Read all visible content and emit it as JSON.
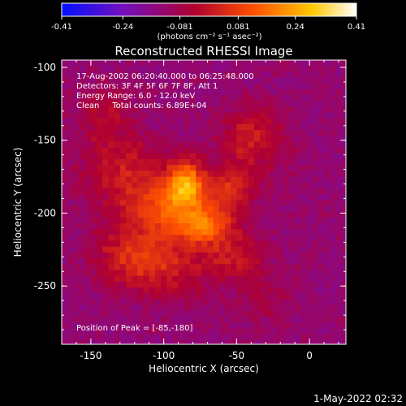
{
  "chart_data": {
    "type": "heatmap",
    "title": "Reconstructed RHESSI Image",
    "xlabel": "Heliocentric X (arcsec)",
    "ylabel": "Heliocentric Y (arcsec)",
    "xlim": [
      -170,
      25
    ],
    "ylim": [
      -290,
      -95
    ],
    "x_ticks": [
      "-150",
      "-100",
      "-50",
      "0"
    ],
    "x_tick_values": [
      -150,
      -100,
      -50,
      0
    ],
    "y_ticks": [
      "-100",
      "-150",
      "-200",
      "-250"
    ],
    "y_tick_values": [
      -100,
      -150,
      -200,
      -250
    ],
    "colorbar": {
      "min": -0.41,
      "max": 0.41,
      "tick_labels": [
        "-0.41",
        "-0.24",
        "-0.081",
        "0.081",
        "0.24",
        "0.41"
      ],
      "tick_values": [
        -0.41,
        -0.24,
        -0.081,
        0.081,
        0.24,
        0.41
      ],
      "units_label": "(photons cm⁻² s⁻¹ asec⁻²)",
      "colormap": [
        "#0010ff",
        "#7010c0",
        "#b00030",
        "#ff5000",
        "#ffc800",
        "#ffffff"
      ]
    },
    "annotations": [
      "17-Aug-2002 06:20:40.000 to 06:25:48.000",
      "Detectors: 3F 4F 5F 6F 7F 8F, Att 1",
      "Energy Range: 6.0 - 12.0 keV",
      "Clean     Total counts: 6.89E+04"
    ],
    "peak_label": "Position of Peak = [-85,-180]",
    "peak": [
      -85,
      -180
    ],
    "grid": false,
    "pixel_size_arcsec": 4,
    "sources": [
      {
        "x": -85,
        "y": -180,
        "sx": 9,
        "sy": 11,
        "amp": 0.33
      },
      {
        "x": -73,
        "y": -208,
        "sx": 14,
        "sy": 10,
        "amp": 0.26
      },
      {
        "x": -102,
        "y": -196,
        "sx": 17,
        "sy": 14,
        "amp": 0.2
      },
      {
        "x": -55,
        "y": -185,
        "sx": 13,
        "sy": 11,
        "amp": 0.16
      },
      {
        "x": -40,
        "y": -150,
        "sx": 16,
        "sy": 16,
        "amp": 0.14
      },
      {
        "x": -130,
        "y": -170,
        "sx": 20,
        "sy": 18,
        "amp": 0.13
      },
      {
        "x": -120,
        "y": -228,
        "sx": 20,
        "sy": 15,
        "amp": 0.15
      },
      {
        "x": -50,
        "y": -230,
        "sx": 15,
        "sy": 12,
        "amp": 0.12
      },
      {
        "x": -95,
        "y": -240,
        "sx": 22,
        "sy": 14,
        "amp": 0.1
      },
      {
        "x": -140,
        "y": -130,
        "sx": 14,
        "sy": 14,
        "amp": 0.08
      },
      {
        "x": -30,
        "y": -260,
        "sx": 12,
        "sy": 12,
        "amp": 0.06
      }
    ],
    "background_level": -0.13
  },
  "footer": {
    "timestamp": "1-May-2022 02:32"
  }
}
